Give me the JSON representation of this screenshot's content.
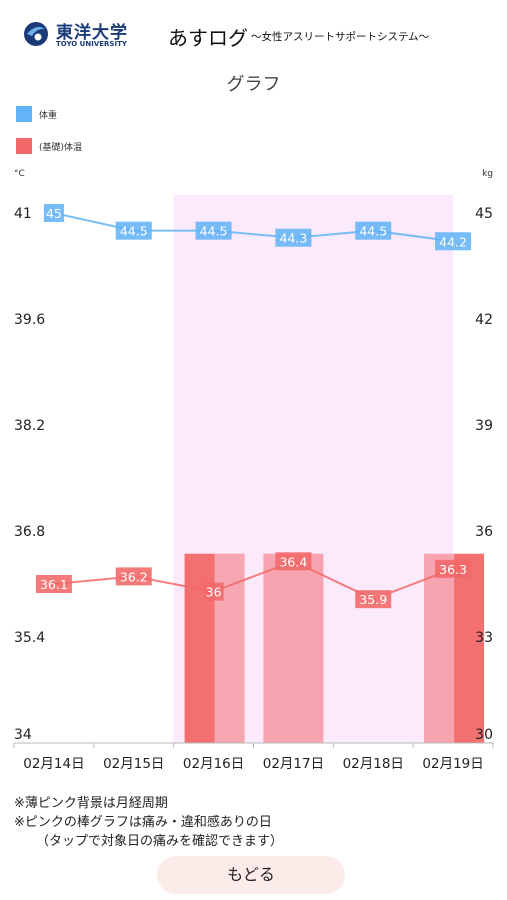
{
  "header": {
    "logo_name": "東洋大学",
    "logo_sub": "TOYO UNIVERSITY",
    "app_title": "あすログ",
    "app_subtitle": "〜女性アスリートサポートシステム〜"
  },
  "page_title": "グラフ",
  "legend": {
    "weight_label": "体重",
    "weight_color": "#63b3f7",
    "temp_label": "(基礎)体温",
    "temp_color": "#f26868"
  },
  "chart_data": {
    "type": "line",
    "categories": [
      "02月14日",
      "02月15日",
      "02月16日",
      "02月17日",
      "02月18日",
      "02月19日"
    ],
    "left_axis": {
      "unit": "°C",
      "ticks": [
        "41",
        "39.6",
        "38.2",
        "36.8",
        "35.4",
        "34"
      ],
      "range": [
        34,
        41
      ]
    },
    "right_axis": {
      "unit": "kg",
      "ticks": [
        "45",
        "42",
        "39",
        "36",
        "33",
        "30"
      ],
      "range": [
        30,
        45
      ]
    },
    "series": [
      {
        "name": "体重",
        "axis": "right",
        "color": "#63b3f7",
        "values": [
          45,
          44.5,
          44.5,
          44.3,
          44.5,
          44.2
        ],
        "labels": [
          "45",
          "44.5",
          "44.5",
          "44.3",
          "44.5",
          "44.2"
        ]
      },
      {
        "name": "(基礎)体温",
        "axis": "left",
        "color": "#f26868",
        "values": [
          36.1,
          36.2,
          36.0,
          36.4,
          35.9,
          36.3
        ],
        "labels": [
          "36.1",
          "36.2",
          "36",
          "36.4",
          "35.9",
          "36.3"
        ]
      }
    ],
    "menstrual_period": {
      "start": "02月16日",
      "end": "02月19日",
      "color": "#fbeafb"
    },
    "pain_bars": [
      {
        "date": "02月16日",
        "value": 36.5,
        "color": "#f26868",
        "opacity": 0.95
      },
      {
        "date": "02月16日",
        "value": 36.5,
        "color": "#f5a0aa",
        "opacity": 0.9
      },
      {
        "date": "02月17日",
        "value": 36.5,
        "color": "#f7a0ac",
        "opacity": 0.95
      },
      {
        "date": "02月19日",
        "value": 36.5,
        "color": "#f7a0ac",
        "opacity": 0.95
      },
      {
        "date": "02月19日",
        "value": 36.5,
        "color": "#f26868",
        "opacity": 0.95
      }
    ]
  },
  "notes": [
    "※薄ピンク背景は月経周期",
    "※ピンクの棒グラフは痛み・違和感ありの日",
    "（タップで対象日の痛みを確認できます）"
  ],
  "back_button_label": "もどる"
}
